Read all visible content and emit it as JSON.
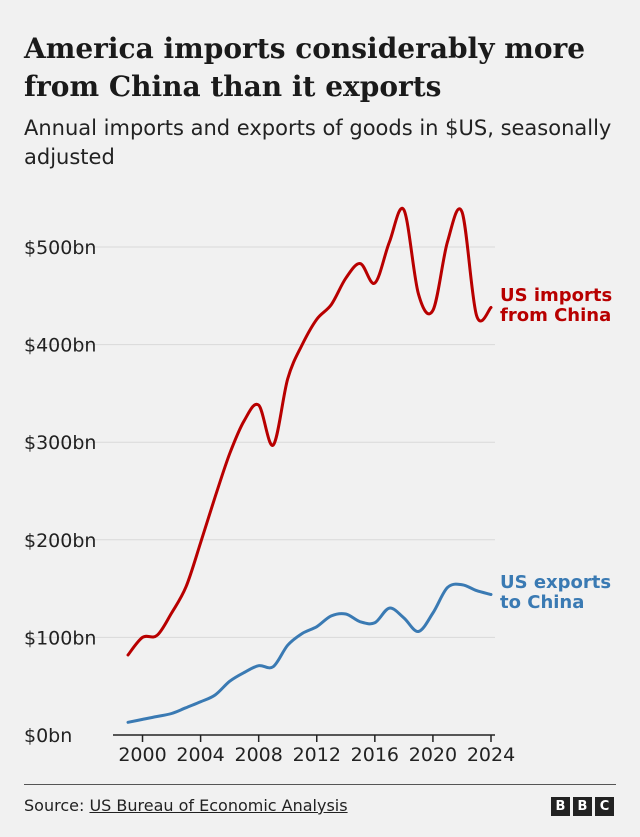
{
  "title": "America imports considerably more from China than it exports",
  "subtitle": "Annual imports and exports of goods in $US, seasonally adjusted",
  "source_prefix": "Source:",
  "source_link": "US Bureau of Economic Analysis",
  "logo": [
    "B",
    "B",
    "C"
  ],
  "colors": {
    "imports": "#b80000",
    "exports": "#3a7ab3",
    "grid": "#d9d9d9",
    "axis": "#222222"
  },
  "chart_data": {
    "type": "line",
    "title": "America imports considerably more from China than it exports",
    "subtitle": "Annual imports and exports of goods in $US, seasonally adjusted",
    "xlim": [
      1999,
      2024
    ],
    "ylim": [
      0,
      550
    ],
    "x_ticks": [
      2000,
      2004,
      2008,
      2012,
      2016,
      2020,
      2024
    ],
    "y_ticks": [
      0,
      100,
      200,
      300,
      400,
      500
    ],
    "y_tick_labels": [
      "$0bn",
      "$100bn",
      "$200bn",
      "$300bn",
      "$400bn",
      "$500bn"
    ],
    "grid": true,
    "series": [
      {
        "name": "US imports from China",
        "label_lines": [
          "US imports",
          "from China"
        ],
        "color": "#b80000",
        "x": [
          1999,
          2000,
          2001,
          2002,
          2003,
          2004,
          2005,
          2006,
          2007,
          2008,
          2009,
          2010,
          2011,
          2012,
          2013,
          2014,
          2015,
          2016,
          2017,
          2018,
          2019,
          2020,
          2021,
          2022,
          2023,
          2024
        ],
        "values": [
          82,
          100,
          102,
          125,
          152,
          197,
          244,
          288,
          322,
          338,
          297,
          365,
          400,
          426,
          441,
          468,
          483,
          463,
          505,
          538,
          452,
          435,
          505,
          536,
          430,
          438
        ]
      },
      {
        "name": "US exports to China",
        "label_lines": [
          "US exports",
          "to China"
        ],
        "color": "#3a7ab3",
        "x": [
          1999,
          2000,
          2001,
          2002,
          2003,
          2004,
          2005,
          2006,
          2007,
          2008,
          2009,
          2010,
          2011,
          2012,
          2013,
          2014,
          2015,
          2016,
          2017,
          2018,
          2019,
          2020,
          2021,
          2022,
          2023,
          2024
        ],
        "values": [
          13,
          16,
          19,
          22,
          28,
          34,
          41,
          55,
          64,
          71,
          70,
          92,
          104,
          111,
          122,
          124,
          116,
          115,
          130,
          120,
          106,
          125,
          151,
          154,
          148,
          144
        ]
      }
    ]
  }
}
